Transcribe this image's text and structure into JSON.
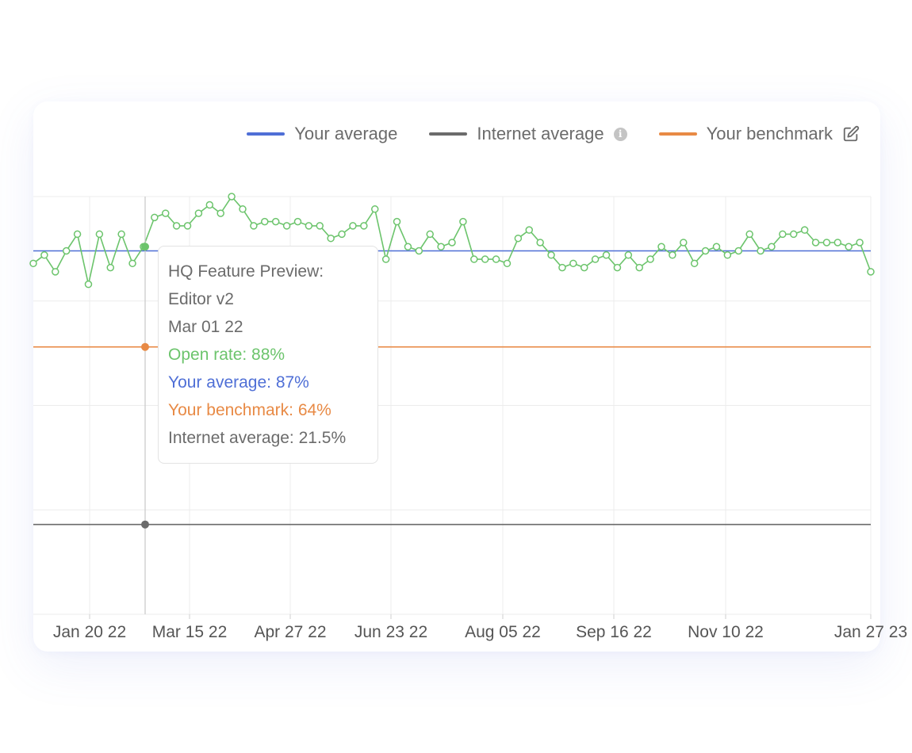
{
  "legend": {
    "your_average": "Your average",
    "internet_average": "Internet average",
    "your_benchmark": "Your benchmark",
    "info_icon": "info-icon",
    "edit_icon": "pencil-square-icon"
  },
  "colors": {
    "open_rate": "#6cc46c",
    "your_average": "#4f6fd6",
    "internet_average": "#6b6b6b",
    "your_benchmark": "#e88a45",
    "grid": "#ececec"
  },
  "tooltip": {
    "title_line1": "HQ Feature Preview:",
    "title_line2": "Editor v2",
    "date": "Mar 01 22",
    "open_rate": "Open rate: 88%",
    "your_average": "Your average: 87%",
    "your_benchmark": "Your benchmark: 64%",
    "internet_average": "Internet average: 21.5%"
  },
  "chart_data": {
    "type": "line",
    "x_tick_labels": [
      "Jan 20 22",
      "Mar 15 22",
      "Apr 27 22",
      "Jun 23 22",
      "Aug 05 22",
      "Sep 16 22",
      "Nov 10 22",
      "Jan 27 23"
    ],
    "ylim": [
      0,
      100
    ],
    "grid": true,
    "legend_position": "top-right",
    "series": [
      {
        "name": "Open rate",
        "values": [
          84,
          86,
          82,
          87,
          91,
          79,
          91,
          83,
          91,
          84,
          88,
          95,
          96,
          93,
          93,
          96,
          98,
          96,
          100,
          97,
          93,
          94,
          94,
          93,
          94,
          93,
          93,
          90,
          91,
          93,
          93,
          97,
          85,
          94,
          88,
          87,
          91,
          88,
          89,
          94,
          85,
          85,
          85,
          84,
          90,
          92,
          89,
          86,
          83,
          84,
          83,
          85,
          86,
          83,
          86,
          83,
          85,
          88,
          86,
          89,
          84,
          87,
          88,
          86,
          87,
          91,
          87,
          88,
          91,
          91,
          92,
          89,
          89,
          89,
          88,
          89,
          82
        ]
      },
      {
        "name": "Your average",
        "values": [
          87
        ]
      },
      {
        "name": "Your benchmark",
        "values": [
          64
        ]
      },
      {
        "name": "Internet average",
        "values": [
          21.5
        ]
      }
    ],
    "highlighted_point": {
      "x": "Mar 01 22",
      "open_rate": 88,
      "your_average": 87,
      "your_benchmark": 64,
      "internet_average": 21.5
    }
  }
}
